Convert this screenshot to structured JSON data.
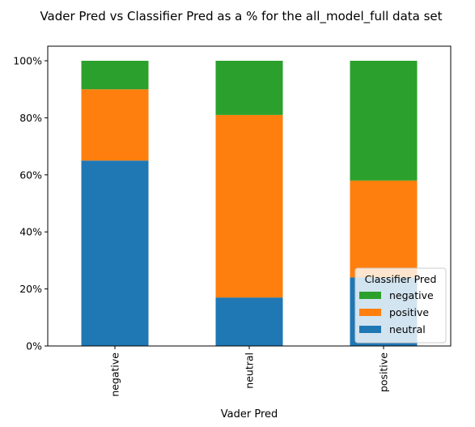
{
  "chart_data": {
    "type": "bar",
    "stacked": true,
    "title": "Vader Pred vs Classifier Pred as a % for the all_model_full data set",
    "xlabel": "Vader Pred",
    "ylabel": "",
    "categories": [
      "negative",
      "neutral",
      "positive"
    ],
    "yticks": [
      "0%",
      "20%",
      "40%",
      "60%",
      "80%",
      "100%"
    ],
    "ylim": [
      0,
      100
    ],
    "series": [
      {
        "name": "neutral",
        "color": "#1f77b4",
        "values": [
          65,
          17,
          24
        ]
      },
      {
        "name": "positive",
        "color": "#ff7f0e",
        "values": [
          25,
          64,
          34
        ]
      },
      {
        "name": "negative",
        "color": "#2ca02c",
        "values": [
          10,
          19,
          42
        ]
      }
    ],
    "legend": {
      "title": "Classifier Pred",
      "placement": "lower-right",
      "order": [
        "negative",
        "positive",
        "neutral"
      ]
    },
    "grid": false
  }
}
